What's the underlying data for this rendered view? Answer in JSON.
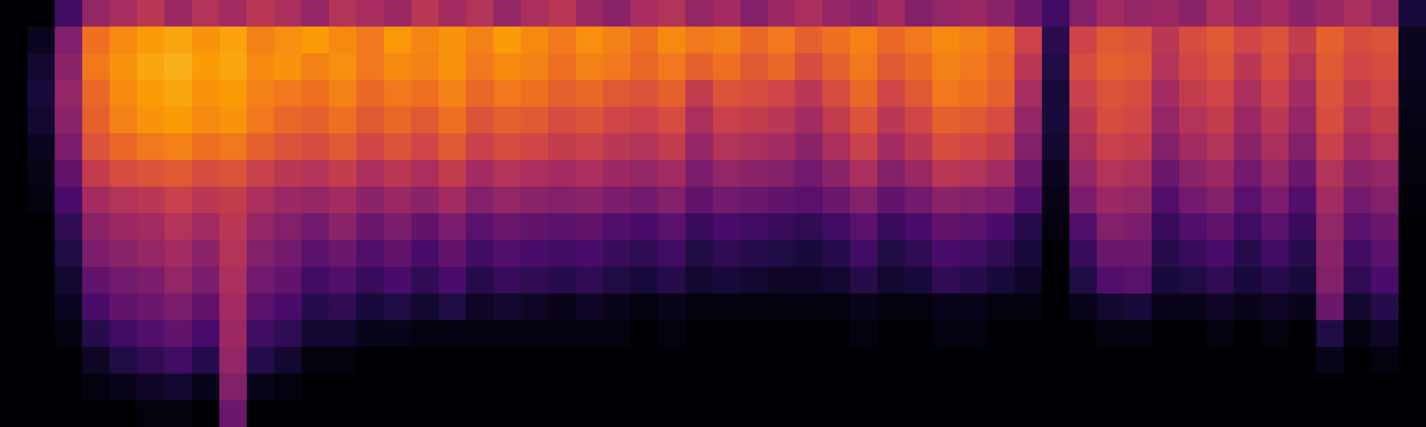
{
  "chart_data": {
    "type": "heatmap",
    "tick_labels": false,
    "grid": false,
    "zlim": [
      0,
      100
    ],
    "cells": [
      [
        0,
        0,
        20,
        40,
        45,
        50,
        42,
        48,
        44,
        50,
        46,
        40,
        48,
        45,
        42,
        50,
        44,
        48,
        40,
        46,
        50,
        42,
        38,
        45,
        48,
        40,
        44,
        36,
        42,
        46,
        40,
        38,
        44,
        36,
        40,
        42,
        38,
        30,
        20,
        36,
        44,
        40,
        42,
        38,
        46,
        40,
        44,
        38,
        42,
        46,
        40,
        10
      ],
      [
        0,
        5,
        35,
        68,
        74,
        78,
        80,
        76,
        79,
        72,
        75,
        78,
        74,
        70,
        77,
        73,
        76,
        72,
        78,
        74,
        70,
        75,
        72,
        68,
        74,
        70,
        72,
        66,
        70,
        64,
        68,
        72,
        66,
        70,
        74,
        72,
        68,
        55,
        15,
        55,
        62,
        60,
        50,
        58,
        62,
        56,
        60,
        52,
        64,
        58,
        60,
        5
      ],
      [
        0,
        8,
        38,
        70,
        76,
        80,
        82,
        78,
        80,
        74,
        76,
        72,
        75,
        70,
        74,
        72,
        76,
        70,
        74,
        72,
        68,
        72,
        70,
        66,
        70,
        64,
        68,
        62,
        66,
        58,
        64,
        70,
        62,
        66,
        72,
        70,
        66,
        50,
        12,
        58,
        64,
        62,
        48,
        56,
        60,
        50,
        58,
        48,
        62,
        56,
        58,
        5
      ],
      [
        0,
        10,
        40,
        66,
        74,
        78,
        80,
        76,
        78,
        72,
        70,
        68,
        72,
        66,
        70,
        68,
        72,
        66,
        70,
        68,
        64,
        66,
        62,
        60,
        64,
        52,
        60,
        58,
        56,
        50,
        58,
        66,
        56,
        62,
        70,
        68,
        64,
        45,
        10,
        54,
        60,
        58,
        44,
        52,
        56,
        46,
        54,
        44,
        60,
        52,
        56,
        4
      ],
      [
        0,
        8,
        38,
        64,
        72,
        76,
        78,
        74,
        76,
        70,
        66,
        64,
        68,
        62,
        66,
        62,
        68,
        60,
        64,
        62,
        58,
        60,
        56,
        54,
        58,
        46,
        54,
        52,
        50,
        44,
        52,
        60,
        50,
        56,
        64,
        62,
        58,
        40,
        10,
        50,
        58,
        56,
        40,
        48,
        52,
        42,
        50,
        40,
        58,
        48,
        52,
        3
      ],
      [
        0,
        5,
        34,
        60,
        66,
        70,
        72,
        68,
        70,
        64,
        60,
        58,
        62,
        56,
        60,
        56,
        62,
        54,
        58,
        56,
        52,
        54,
        50,
        48,
        52,
        40,
        48,
        46,
        44,
        38,
        46,
        54,
        44,
        50,
        58,
        56,
        52,
        36,
        8,
        46,
        54,
        52,
        36,
        44,
        48,
        38,
        46,
        36,
        54,
        44,
        48,
        2
      ],
      [
        0,
        3,
        28,
        52,
        58,
        60,
        62,
        58,
        60,
        54,
        50,
        48,
        52,
        46,
        50,
        46,
        52,
        44,
        48,
        46,
        44,
        46,
        42,
        40,
        44,
        34,
        40,
        38,
        36,
        32,
        38,
        46,
        36,
        42,
        50,
        48,
        44,
        30,
        5,
        40,
        48,
        46,
        30,
        38,
        42,
        32,
        40,
        30,
        48,
        38,
        40,
        2
      ],
      [
        0,
        2,
        22,
        44,
        48,
        50,
        54,
        50,
        52,
        46,
        42,
        40,
        44,
        38,
        42,
        38,
        44,
        36,
        40,
        38,
        36,
        38,
        34,
        32,
        36,
        28,
        32,
        30,
        28,
        26,
        30,
        36,
        28,
        32,
        38,
        36,
        34,
        24,
        3,
        34,
        42,
        40,
        24,
        32,
        36,
        26,
        34,
        24,
        44,
        32,
        36,
        1
      ],
      [
        0,
        0,
        16,
        38,
        42,
        44,
        48,
        44,
        50,
        40,
        36,
        32,
        38,
        30,
        34,
        28,
        34,
        26,
        30,
        28,
        26,
        28,
        24,
        22,
        26,
        18,
        22,
        20,
        18,
        16,
        20,
        26,
        18,
        22,
        28,
        26,
        22,
        14,
        2,
        24,
        36,
        34,
        18,
        24,
        28,
        20,
        26,
        18,
        40,
        26,
        30,
        0
      ],
      [
        0,
        0,
        12,
        34,
        38,
        40,
        44,
        38,
        48,
        36,
        32,
        26,
        30,
        24,
        28,
        22,
        28,
        20,
        24,
        22,
        20,
        22,
        18,
        16,
        20,
        12,
        16,
        14,
        12,
        10,
        14,
        20,
        12,
        16,
        22,
        20,
        16,
        10,
        0,
        18,
        30,
        30,
        14,
        18,
        22,
        14,
        20,
        14,
        38,
        20,
        26,
        0
      ],
      [
        0,
        0,
        8,
        28,
        32,
        34,
        40,
        34,
        46,
        32,
        28,
        20,
        24,
        18,
        22,
        16,
        22,
        14,
        18,
        16,
        14,
        16,
        12,
        10,
        14,
        8,
        10,
        8,
        6,
        6,
        8,
        14,
        8,
        10,
        16,
        14,
        10,
        6,
        0,
        12,
        24,
        26,
        10,
        12,
        16,
        10,
        14,
        10,
        36,
        16,
        22,
        0
      ],
      [
        0,
        0,
        5,
        22,
        28,
        30,
        34,
        28,
        44,
        26,
        22,
        14,
        16,
        10,
        12,
        8,
        12,
        6,
        8,
        6,
        4,
        6,
        4,
        2,
        4,
        2,
        2,
        2,
        2,
        2,
        2,
        4,
        2,
        2,
        4,
        4,
        2,
        2,
        0,
        4,
        8,
        10,
        4,
        4,
        6,
        4,
        6,
        4,
        30,
        8,
        14,
        0
      ],
      [
        0,
        0,
        2,
        14,
        20,
        24,
        28,
        22,
        42,
        20,
        16,
        8,
        8,
        4,
        4,
        2,
        2,
        2,
        2,
        2,
        2,
        2,
        2,
        0,
        2,
        0,
        0,
        0,
        0,
        0,
        0,
        2,
        0,
        0,
        2,
        2,
        0,
        0,
        0,
        0,
        2,
        2,
        0,
        0,
        2,
        0,
        2,
        0,
        12,
        2,
        6,
        0
      ],
      [
        0,
        0,
        0,
        6,
        12,
        16,
        20,
        14,
        40,
        14,
        8,
        2,
        2,
        0,
        0,
        0,
        0,
        0,
        0,
        0,
        0,
        0,
        0,
        0,
        0,
        0,
        0,
        0,
        0,
        0,
        0,
        0,
        0,
        0,
        0,
        0,
        0,
        0,
        0,
        0,
        0,
        0,
        0,
        0,
        0,
        0,
        0,
        0,
        4,
        0,
        2,
        0
      ],
      [
        0,
        0,
        0,
        2,
        4,
        6,
        8,
        4,
        36,
        4,
        2,
        0,
        0,
        0,
        0,
        0,
        0,
        0,
        0,
        0,
        0,
        0,
        0,
        0,
        0,
        0,
        0,
        0,
        0,
        0,
        0,
        0,
        0,
        0,
        0,
        0,
        0,
        0,
        0,
        0,
        0,
        0,
        0,
        0,
        0,
        0,
        0,
        0,
        0,
        0,
        0,
        0
      ],
      [
        0,
        0,
        0,
        0,
        0,
        2,
        2,
        0,
        30,
        0,
        0,
        0,
        0,
        0,
        0,
        0,
        0,
        0,
        0,
        0,
        0,
        0,
        0,
        0,
        0,
        0,
        0,
        0,
        0,
        0,
        0,
        0,
        0,
        0,
        0,
        0,
        0,
        0,
        0,
        0,
        0,
        0,
        0,
        0,
        0,
        0,
        0,
        0,
        0,
        0,
        0,
        0
      ]
    ]
  }
}
